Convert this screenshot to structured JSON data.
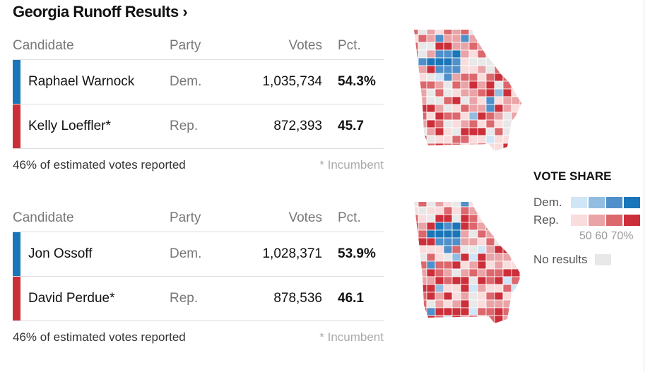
{
  "title": "Georgia Runoff Results",
  "chevron": "›",
  "header": {
    "candidate": "Candidate",
    "party": "Party",
    "votes": "Votes",
    "pct": "Pct."
  },
  "races": [
    {
      "candidates": [
        {
          "name": "Raphael Warnock",
          "party": "Dem.",
          "votes": "1,035,734",
          "pct": "54.3%",
          "color": "#1a76b8"
        },
        {
          "name": "Kelly Loeffler*",
          "party": "Rep.",
          "votes": "872,393",
          "pct": "45.7",
          "color": "#cc2f3a"
        }
      ],
      "reported": "46% of estimated votes reported",
      "note": "* Incumbent"
    },
    {
      "candidates": [
        {
          "name": "Jon Ossoff",
          "party": "Dem.",
          "votes": "1,028,371",
          "pct": "53.9%",
          "color": "#1a76b8"
        },
        {
          "name": "David Perdue*",
          "party": "Rep.",
          "votes": "878,536",
          "pct": "46.1",
          "color": "#cc2f3a"
        }
      ],
      "reported": "46% of estimated votes reported",
      "note": "* Incumbent"
    }
  ],
  "legend": {
    "title": "VOTE SHARE",
    "dem": "Dem.",
    "rep": "Rep.",
    "ticks": "50 60 70%",
    "no_results": "No results",
    "dem_colors": [
      "#cfe6f7",
      "#92bde0",
      "#4f90cb",
      "#1a76b8"
    ],
    "rep_colors": [
      "#f9dcdc",
      "#eaa3a6",
      "#dc676d",
      "#cc2f3a"
    ],
    "none_color": "#e8e8e8"
  }
}
